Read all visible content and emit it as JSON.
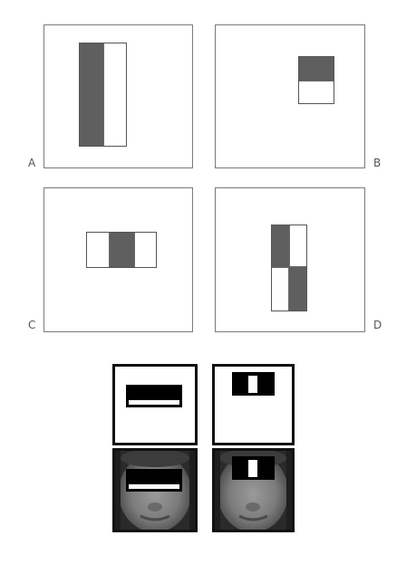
{
  "panels": [
    {
      "id": "A",
      "label": "A"
    },
    {
      "id": "B",
      "label": "B"
    },
    {
      "id": "C",
      "label": "C"
    },
    {
      "id": "D",
      "label": "D"
    }
  ],
  "colors": {
    "dark_region": "#5f5f5f",
    "light_region": "#ffffff",
    "border": "#7a7a7a"
  },
  "examples": [
    {
      "id": "edge-template",
      "icon": "edge-feature-template"
    },
    {
      "id": "line-template",
      "icon": "line-feature-template"
    },
    {
      "id": "edge-on-face",
      "icon": "face-image"
    },
    {
      "id": "line-on-face",
      "icon": "face-image"
    }
  ]
}
